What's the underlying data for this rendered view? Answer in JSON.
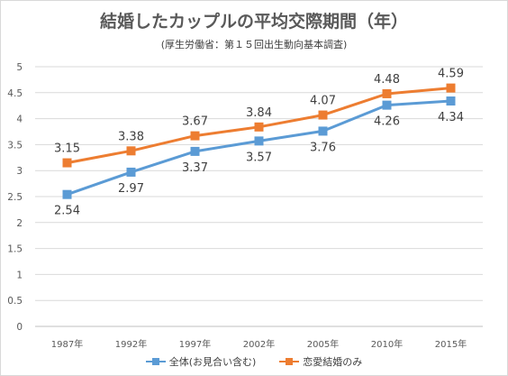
{
  "chart_data": {
    "type": "line",
    "title": "結婚したカップルの平均交際期間（年）",
    "subtitle": "(厚生労働省：第１５回出生動向基本調査)",
    "categories": [
      "1987年",
      "1992年",
      "1997年",
      "2002年",
      "2005年",
      "2010年",
      "2015年"
    ],
    "ylim": [
      0,
      5
    ],
    "yticks": [
      "0",
      "0.5",
      "1",
      "1.5",
      "2",
      "2.5",
      "3",
      "3.5",
      "4",
      "4.5",
      "5"
    ],
    "grid": true,
    "legend_position": "bottom",
    "series": [
      {
        "name": "全体(お見合い含む)",
        "color": "#5b9bd5",
        "values": [
          2.54,
          2.97,
          3.37,
          3.57,
          3.76,
          4.26,
          4.34
        ],
        "labels": [
          "2.54",
          "2.97",
          "3.37",
          "3.57",
          "3.76",
          "4.26",
          "4.34"
        ]
      },
      {
        "name": "恋愛結婚のみ",
        "color": "#ed7d31",
        "values": [
          3.15,
          3.38,
          3.67,
          3.84,
          4.07,
          4.48,
          4.59
        ],
        "labels": [
          "3.15",
          "3.38",
          "3.67",
          "3.84",
          "4.07",
          "4.48",
          "4.59"
        ]
      }
    ]
  }
}
